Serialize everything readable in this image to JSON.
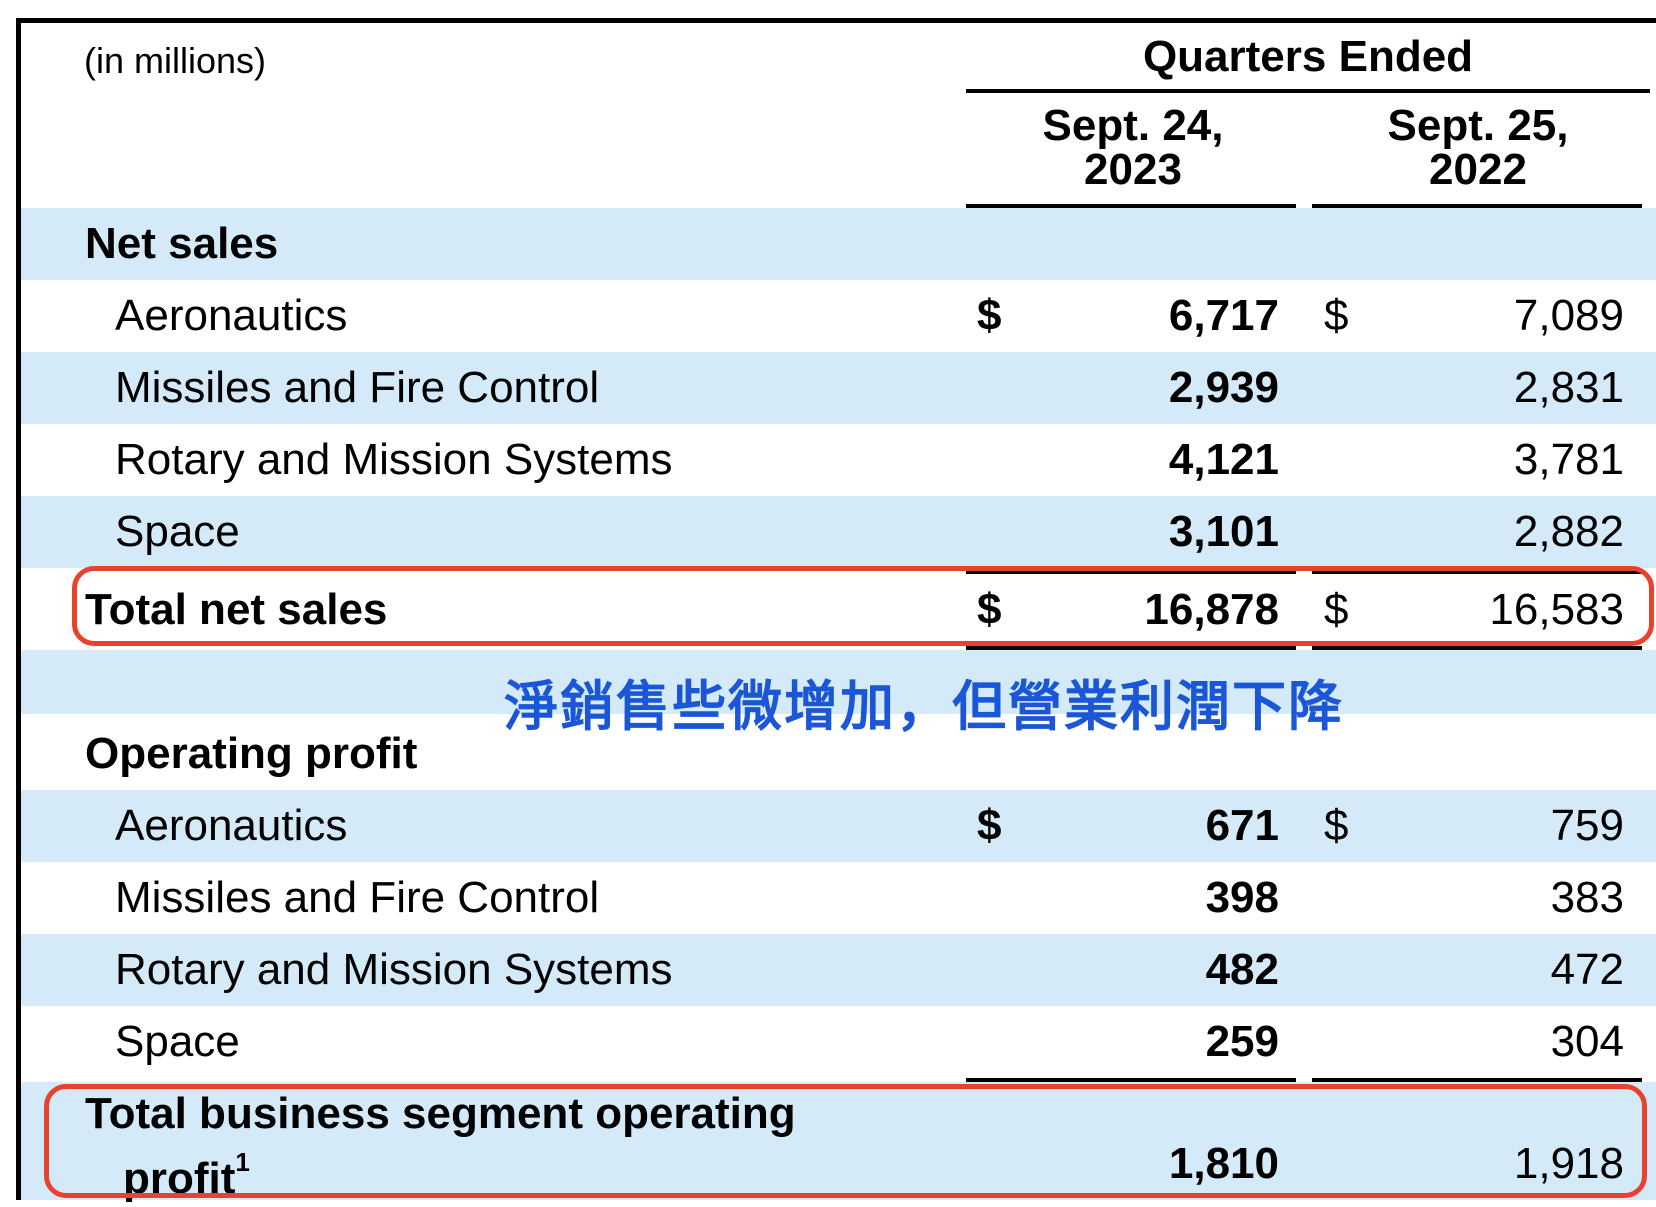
{
  "header": {
    "units": "(in millions)",
    "period_group": "Quarters Ended",
    "col1": {
      "line1": "Sept. 24,",
      "line2": "2023"
    },
    "col2": {
      "line1": "Sept. 25,",
      "line2": "2022"
    }
  },
  "net_sales": {
    "title": "Net sales",
    "rows": [
      {
        "label": "Aeronautics",
        "dollar1": "$",
        "v2023": "6,717",
        "dollar2": "$",
        "v2022": "7,089"
      },
      {
        "label": "Missiles and Fire Control",
        "v2023": "2,939",
        "v2022": "2,831"
      },
      {
        "label": "Rotary and Mission Systems",
        "v2023": "4,121",
        "v2022": "3,781"
      },
      {
        "label": "Space",
        "v2023": "3,101",
        "v2022": "2,882"
      }
    ],
    "total": {
      "label": "Total net sales",
      "dollar1": "$",
      "v2023": "16,878",
      "dollar2": "$",
      "v2022": "16,583"
    }
  },
  "annotation": "淨銷售些微增加，但營業利潤下降",
  "operating_profit": {
    "title": "Operating profit",
    "rows": [
      {
        "label": "Aeronautics",
        "dollar1": "$",
        "v2023": "671",
        "dollar2": "$",
        "v2022": "759"
      },
      {
        "label": "Missiles and Fire Control",
        "v2023": "398",
        "v2022": "383"
      },
      {
        "label": "Rotary and Mission Systems",
        "v2023": "482",
        "v2022": "472"
      },
      {
        "label": "Space",
        "v2023": "259",
        "v2022": "304"
      }
    ],
    "total": {
      "label_line1": "Total business segment operating",
      "label_line2": "profit",
      "footnote": "1",
      "v2023": "1,810",
      "v2022": "1,918"
    }
  },
  "colors": {
    "row_band": "#d4eaf8",
    "highlight_box": "#e8412e",
    "annotation_text": "#1a56d6"
  }
}
